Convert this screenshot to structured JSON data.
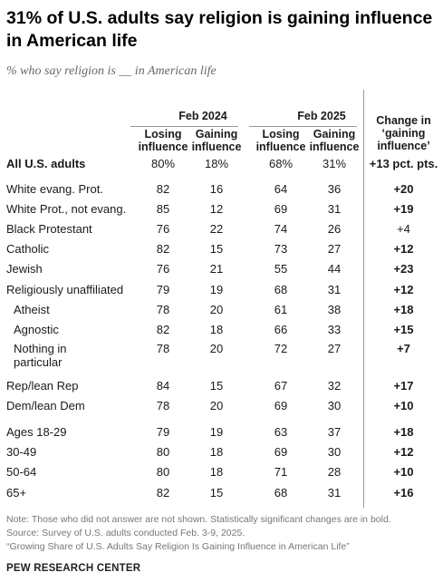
{
  "header": {
    "title": "31% of U.S. adults say religion is gaining influence in American life",
    "subtitle": "% who say religion is __ in American life"
  },
  "chart_data": {
    "type": "table",
    "groups": [
      "Feb 2024",
      "Feb 2025"
    ],
    "columns": [
      "Losing influence",
      "Gaining influence",
      "Losing influence",
      "Gaining influence",
      "Change in ‘gaining influence’"
    ],
    "change_header": [
      "Change in",
      "‘gaining",
      "influence’"
    ],
    "rows": [
      {
        "label": "All U.S. adults",
        "values": [
          "80%",
          "18%",
          "68%",
          "31%"
        ],
        "change": "+13 pct. pts.",
        "significant": true
      },
      {
        "label": "White evang. Prot.",
        "values": [
          "82",
          "16",
          "64",
          "36"
        ],
        "change": "+20",
        "significant": true
      },
      {
        "label": "White Prot., not evang.",
        "values": [
          "85",
          "12",
          "69",
          "31"
        ],
        "change": "+19",
        "significant": true
      },
      {
        "label": "Black Protestant",
        "values": [
          "76",
          "22",
          "74",
          "26"
        ],
        "change": "+4",
        "significant": false
      },
      {
        "label": "Catholic",
        "values": [
          "82",
          "15",
          "73",
          "27"
        ],
        "change": "+12",
        "significant": true
      },
      {
        "label": "Jewish",
        "values": [
          "76",
          "21",
          "55",
          "44"
        ],
        "change": "+23",
        "significant": true
      },
      {
        "label": "Religiously unaffiliated",
        "values": [
          "79",
          "19",
          "68",
          "31"
        ],
        "change": "+12",
        "significant": true
      },
      {
        "label": "Atheist",
        "values": [
          "78",
          "20",
          "61",
          "38"
        ],
        "change": "+18",
        "significant": true
      },
      {
        "label": "Agnostic",
        "values": [
          "82",
          "18",
          "66",
          "33"
        ],
        "change": "+15",
        "significant": true
      },
      {
        "label": "Nothing in particular",
        "values": [
          "78",
          "20",
          "72",
          "27"
        ],
        "change": "+7",
        "significant": true
      },
      {
        "label": "Rep/lean Rep",
        "values": [
          "84",
          "15",
          "67",
          "32"
        ],
        "change": "+17",
        "significant": true
      },
      {
        "label": "Dem/lean Dem",
        "values": [
          "78",
          "20",
          "69",
          "30"
        ],
        "change": "+10",
        "significant": true
      },
      {
        "label": "Ages 18-29",
        "values": [
          "79",
          "19",
          "63",
          "37"
        ],
        "change": "+18",
        "significant": true
      },
      {
        "label": "30-49",
        "values": [
          "80",
          "18",
          "69",
          "30"
        ],
        "change": "+12",
        "significant": true
      },
      {
        "label": "50-64",
        "values": [
          "80",
          "18",
          "71",
          "28"
        ],
        "change": "+10",
        "significant": true
      },
      {
        "label": "65+",
        "values": [
          "82",
          "15",
          "68",
          "31"
        ],
        "change": "+16",
        "significant": true
      }
    ]
  },
  "footer": {
    "note": "Note: Those who did not answer are not shown. Statistically significant changes are in bold.",
    "source": "Source: Survey of U.S. adults conducted Feb. 3-9, 2025.",
    "report": "“Growing Share of U.S. Adults Say Religion Is Gaining Influence in American Life”",
    "brand": "PEW RESEARCH CENTER"
  }
}
